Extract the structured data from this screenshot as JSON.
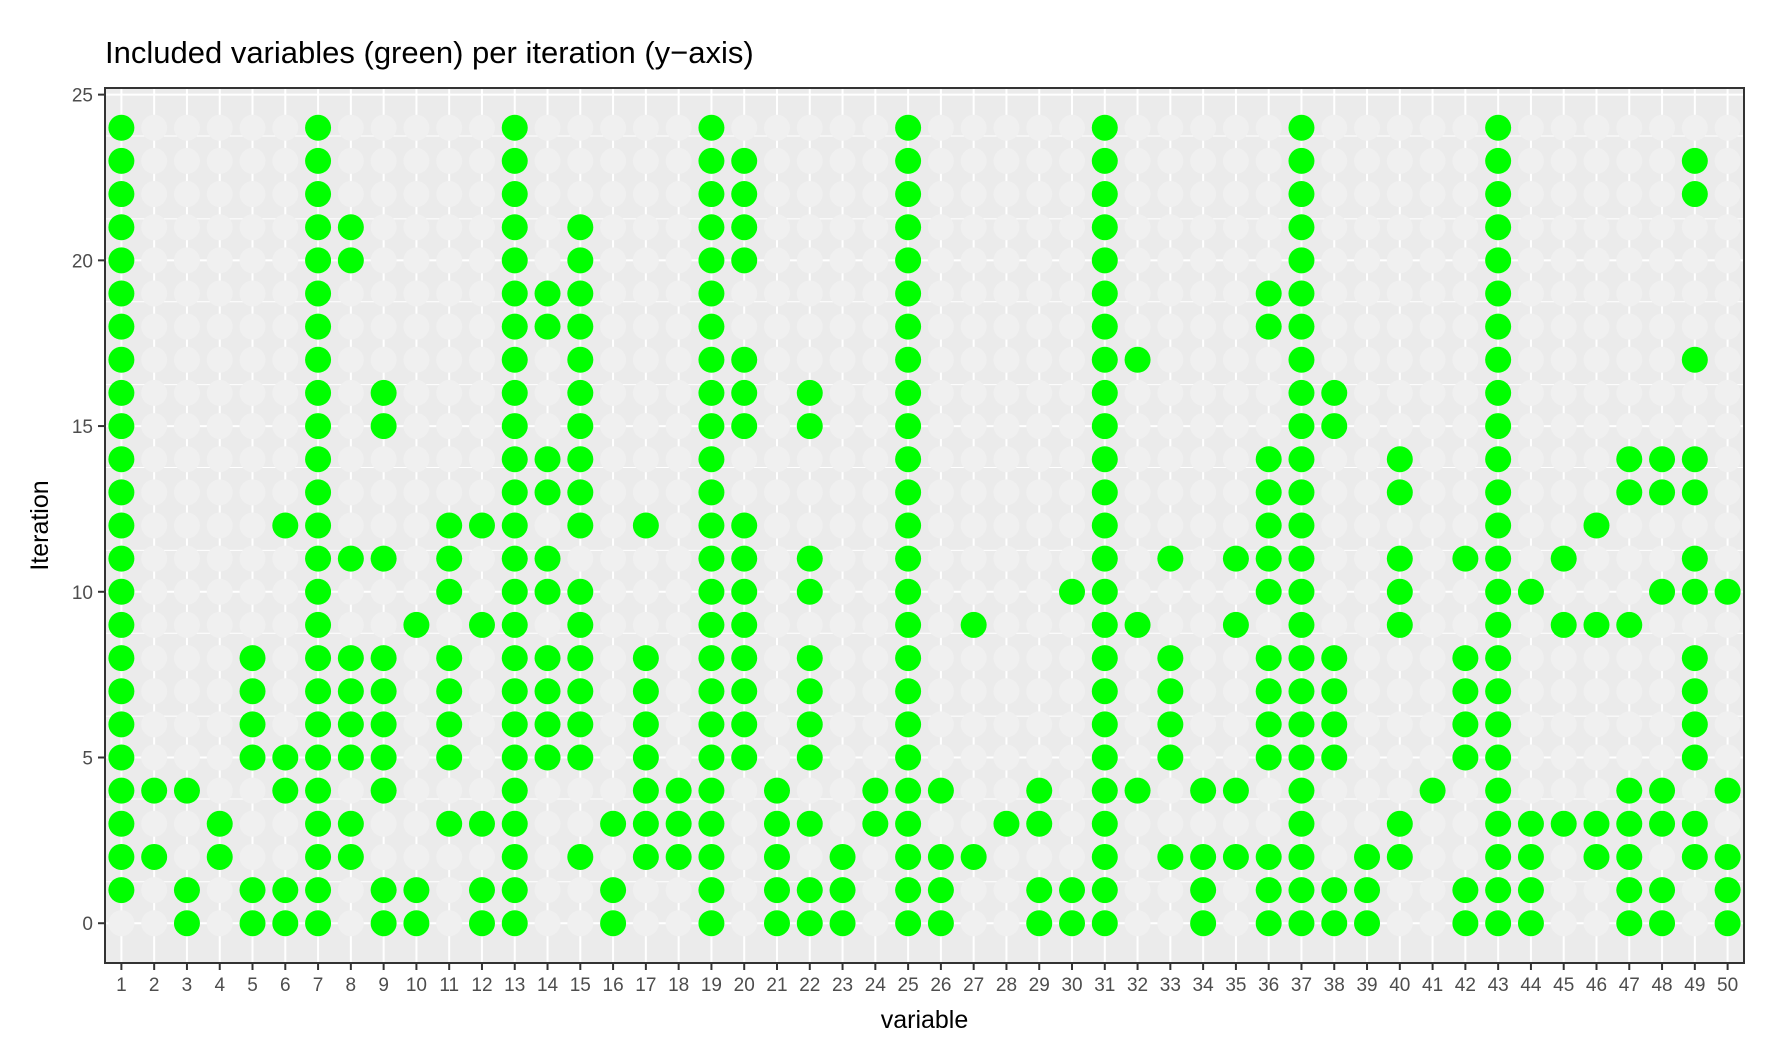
{
  "chart_data": {
    "type": "scatter",
    "title": "Included variables (green) per iteration (y−axis)",
    "xlabel": "variable",
    "ylabel": "Iteration",
    "x_categories": [
      "1",
      "2",
      "3",
      "4",
      "5",
      "6",
      "7",
      "8",
      "9",
      "10",
      "11",
      "12",
      "13",
      "14",
      "15",
      "16",
      "17",
      "18",
      "19",
      "20",
      "21",
      "22",
      "23",
      "24",
      "25",
      "26",
      "27",
      "28",
      "29",
      "30",
      "31",
      "32",
      "33",
      "34",
      "35",
      "36",
      "37",
      "38",
      "39",
      "40",
      "41",
      "42",
      "43",
      "44",
      "45",
      "46",
      "47",
      "48",
      "49",
      "50"
    ],
    "y_ticks": [
      0,
      5,
      10,
      15,
      20,
      25
    ],
    "ylim": [
      -1.2,
      25.2
    ],
    "grid": true,
    "colors": {
      "included": "#00ff00",
      "excluded": "#f0f0f0",
      "panel_background": "#ebebeb",
      "grid_major": "#ffffff",
      "panel_border": "#333333"
    },
    "iterations": [
      0,
      24
    ],
    "included": {
      "1": [
        1,
        2,
        3,
        4,
        5,
        6,
        7,
        8,
        9,
        10,
        11,
        12,
        13,
        14,
        15,
        16,
        17,
        18,
        19,
        20,
        21,
        22,
        23,
        24
      ],
      "2": [
        2,
        4
      ],
      "3": [
        0,
        1,
        4
      ],
      "4": [
        2,
        3
      ],
      "5": [
        0,
        1,
        5,
        6,
        7,
        8
      ],
      "6": [
        0,
        1,
        4,
        5,
        12
      ],
      "7": [
        0,
        1,
        2,
        3,
        4,
        5,
        6,
        7,
        8,
        9,
        10,
        11,
        12,
        13,
        14,
        15,
        16,
        17,
        18,
        19,
        20,
        21,
        22,
        23,
        24
      ],
      "8": [
        2,
        3,
        5,
        6,
        7,
        8,
        11,
        20,
        21
      ],
      "9": [
        0,
        1,
        4,
        5,
        6,
        7,
        8,
        11,
        15,
        16
      ],
      "10": [
        0,
        1,
        9
      ],
      "11": [
        3,
        5,
        6,
        7,
        8,
        10,
        11,
        12
      ],
      "12": [
        0,
        1,
        3,
        9,
        12
      ],
      "13": [
        0,
        1,
        2,
        3,
        4,
        5,
        6,
        7,
        8,
        9,
        10,
        11,
        12,
        13,
        14,
        15,
        16,
        17,
        18,
        19,
        20,
        21,
        22,
        23,
        24
      ],
      "14": [
        5,
        6,
        7,
        8,
        10,
        11,
        13,
        14,
        18,
        19
      ],
      "15": [
        2,
        5,
        6,
        7,
        8,
        9,
        10,
        12,
        13,
        14,
        15,
        16,
        17,
        18,
        19,
        20,
        21
      ],
      "16": [
        0,
        1,
        3
      ],
      "17": [
        2,
        3,
        4,
        5,
        6,
        7,
        8,
        12
      ],
      "18": [
        2,
        3,
        4
      ],
      "19": [
        0,
        1,
        2,
        3,
        4,
        5,
        6,
        7,
        8,
        9,
        10,
        11,
        12,
        13,
        14,
        15,
        16,
        17,
        18,
        19,
        20,
        21,
        22,
        23,
        24
      ],
      "20": [
        5,
        6,
        7,
        8,
        9,
        10,
        11,
        12,
        15,
        16,
        17,
        20,
        21,
        22,
        23
      ],
      "21": [
        0,
        1,
        2,
        3,
        4
      ],
      "22": [
        0,
        1,
        3,
        5,
        6,
        7,
        8,
        10,
        11,
        15,
        16
      ],
      "23": [
        0,
        1,
        2
      ],
      "24": [
        3,
        4
      ],
      "25": [
        0,
        1,
        2,
        3,
        4,
        5,
        6,
        7,
        8,
        9,
        10,
        11,
        12,
        13,
        14,
        15,
        16,
        17,
        18,
        19,
        20,
        21,
        22,
        23,
        24
      ],
      "26": [
        0,
        1,
        2,
        4
      ],
      "27": [
        2,
        9
      ],
      "28": [
        3
      ],
      "29": [
        0,
        1,
        3,
        4
      ],
      "30": [
        0,
        1,
        10
      ],
      "31": [
        0,
        1,
        2,
        3,
        4,
        5,
        6,
        7,
        8,
        9,
        10,
        11,
        12,
        13,
        14,
        15,
        16,
        17,
        18,
        19,
        20,
        21,
        22,
        23,
        24
      ],
      "32": [
        4,
        9,
        17
      ],
      "33": [
        2,
        5,
        6,
        7,
        8,
        11
      ],
      "34": [
        0,
        1,
        2,
        4
      ],
      "35": [
        2,
        4,
        9,
        11
      ],
      "36": [
        0,
        1,
        2,
        5,
        6,
        7,
        8,
        10,
        11,
        12,
        13,
        14,
        18,
        19
      ],
      "37": [
        0,
        1,
        2,
        3,
        4,
        5,
        6,
        7,
        8,
        9,
        10,
        11,
        12,
        13,
        14,
        15,
        16,
        17,
        18,
        19,
        20,
        21,
        22,
        23,
        24
      ],
      "38": [
        0,
        1,
        5,
        6,
        7,
        8,
        15,
        16
      ],
      "39": [
        0,
        1,
        2
      ],
      "40": [
        2,
        3,
        9,
        10,
        11,
        13,
        14
      ],
      "41": [
        4
      ],
      "42": [
        0,
        1,
        5,
        6,
        7,
        8,
        11
      ],
      "43": [
        0,
        1,
        2,
        3,
        4,
        5,
        6,
        7,
        8,
        9,
        10,
        11,
        12,
        13,
        14,
        15,
        16,
        17,
        18,
        19,
        20,
        21,
        22,
        23,
        24
      ],
      "44": [
        0,
        1,
        2,
        3,
        10
      ],
      "45": [
        3,
        9,
        11
      ],
      "46": [
        2,
        3,
        9,
        12
      ],
      "47": [
        0,
        1,
        2,
        3,
        4,
        9,
        13,
        14
      ],
      "48": [
        0,
        1,
        3,
        4,
        10,
        13,
        14
      ],
      "49": [
        2,
        3,
        5,
        6,
        7,
        8,
        10,
        11,
        13,
        14,
        17,
        22,
        23
      ],
      "50": [
        0,
        1,
        2,
        4,
        10
      ]
    }
  }
}
